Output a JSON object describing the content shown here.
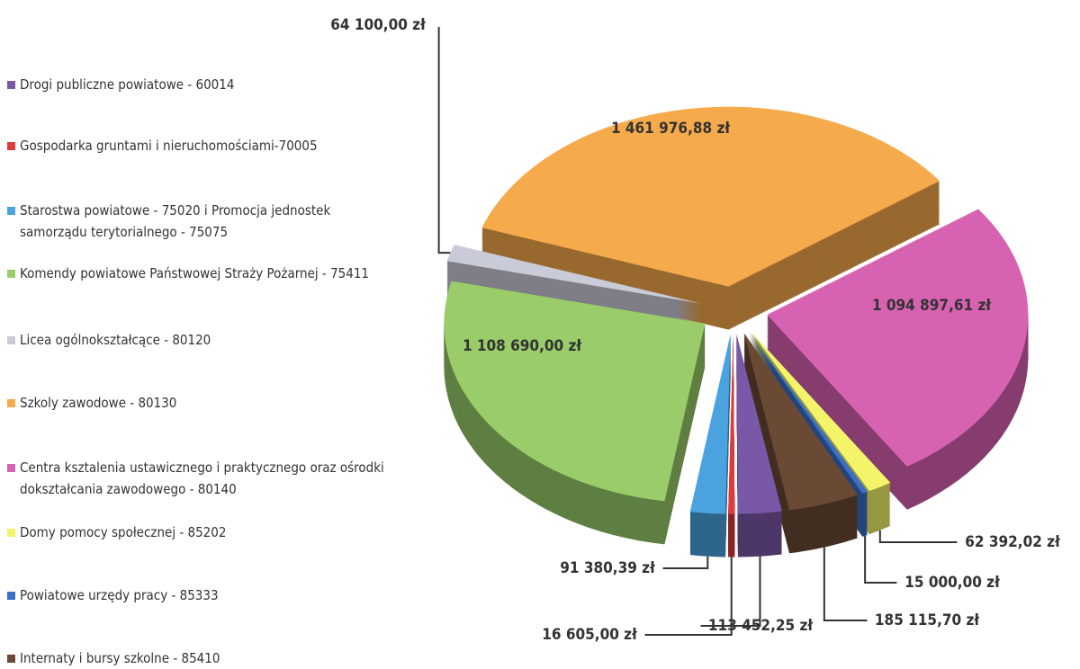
{
  "chart_data": {
    "type": "pie3d",
    "categories": [
      "Drogi publiczne powiatowe - 60014",
      "Gospodarka gruntami i nieruchomościami-70005",
      "Starostwa powiatowe - 75020 i Promocja jednostek samorządu terytorialnego - 75075",
      "Komendy powiatowe Państwowej Straży Pożarnej - 75411",
      "Licea ogólnokształcące - 80120",
      "Szkoly zawodowe - 80130",
      "Centra ksztalenia ustawicznego i praktycznego oraz ośrodki dokształcania zawodowego - 80140",
      "Domy pomocy społecznej - 85202",
      "Powiatowe urzędy pracy - 85333",
      "Internaty i bursy szkolne - 85410"
    ],
    "values": [
      113452.25,
      16605.0,
      91380.39,
      1108690.0,
      64100.0,
      1461976.88,
      1094897.61,
      62392.02,
      15000.0,
      185115.7
    ],
    "value_labels": [
      "113 452,25 zł",
      "16 605,00 zł",
      "91 380,39 zł",
      "1 108 690,00 zł",
      "64 100,00 zł",
      "1 461 976,88 zł",
      "1 094 897,61 zł",
      "62 392,02 zł",
      "15 000,00 zł",
      "185 115,70 zł"
    ],
    "colors": [
      "#7a58a8",
      "#e03a3a",
      "#4aa3df",
      "#9acd6a",
      "#c9ccd8",
      "#f5aa4c",
      "#d862b2",
      "#f4f46a",
      "#3a6fc4",
      "#6b4a35"
    ]
  }
}
